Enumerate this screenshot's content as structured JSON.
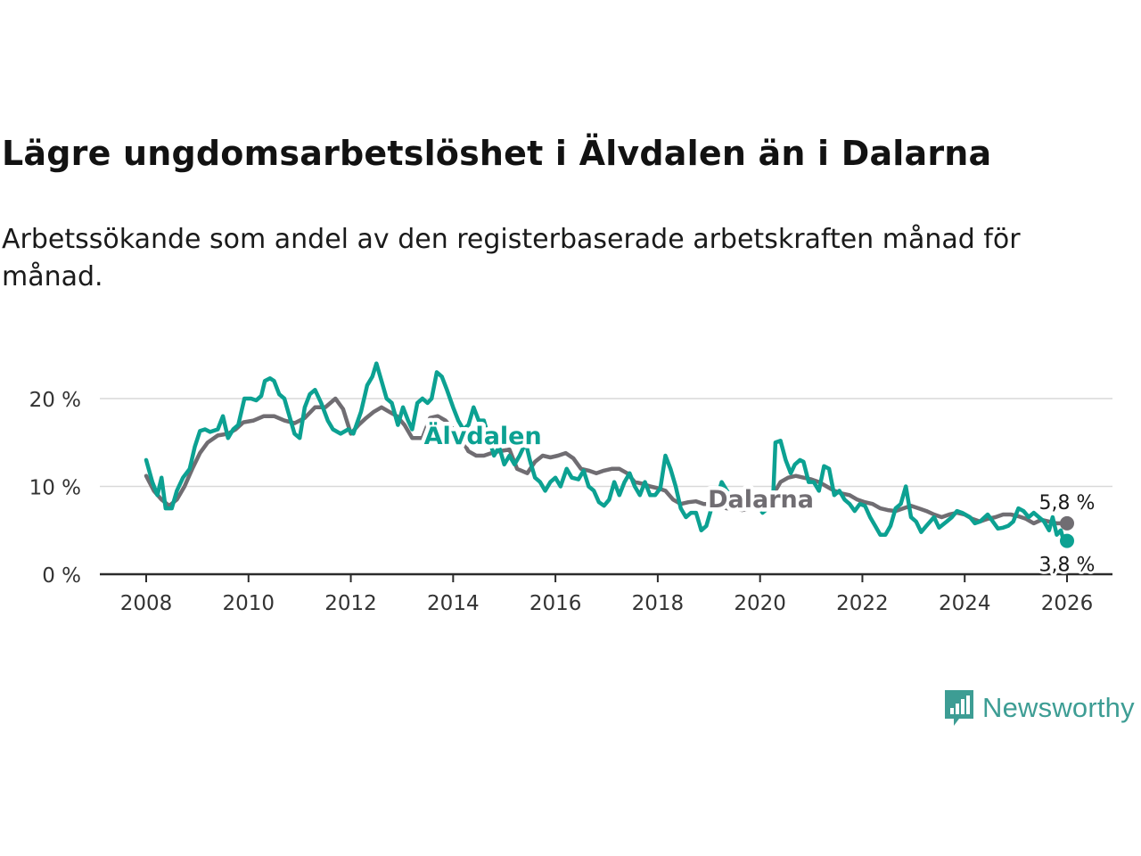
{
  "title": "Lägre ungdomsarbetslöshet i Älvdalen än i Dalarna",
  "subtitle": "Arbetssökande som andel av den registerbaserade arbetskraften månad för månad.",
  "brand": {
    "name": "Newsworthy",
    "color": "#3d9d94"
  },
  "chart_data": {
    "type": "line",
    "title": "Lägre ungdomsarbetslöshet i Älvdalen än i Dalarna",
    "xlabel": "",
    "ylabel": "",
    "xlim": [
      2007.9,
      2026.4
    ],
    "ylim": [
      0,
      22
    ],
    "x_ticks": [
      2008,
      2010,
      2012,
      2014,
      2016,
      2018,
      2020,
      2022,
      2024,
      2026
    ],
    "x_tick_labels": [
      "2008",
      "2010",
      "2012",
      "2014",
      "2016",
      "2018",
      "2020",
      "2022",
      "2024",
      "2026"
    ],
    "y_ticks": [
      0,
      10,
      20
    ],
    "y_tick_labels": [
      "0 %",
      "10 %",
      "20 %"
    ],
    "grid": true,
    "series": [
      {
        "name": "Dalarna",
        "color": "#706d72",
        "end_label": "5,8 %",
        "points": [
          [
            2008.0,
            11.2
          ],
          [
            2008.15,
            9.5
          ],
          [
            2008.3,
            8.5
          ],
          [
            2008.45,
            7.8
          ],
          [
            2008.6,
            8.5
          ],
          [
            2008.75,
            10.0
          ],
          [
            2008.9,
            12.0
          ],
          [
            2009.05,
            13.8
          ],
          [
            2009.2,
            15.0
          ],
          [
            2009.4,
            15.8
          ],
          [
            2009.6,
            16.0
          ],
          [
            2009.75,
            16.5
          ],
          [
            2009.9,
            17.3
          ],
          [
            2010.1,
            17.5
          ],
          [
            2010.3,
            18.0
          ],
          [
            2010.5,
            18.0
          ],
          [
            2010.7,
            17.5
          ],
          [
            2010.9,
            17.2
          ],
          [
            2011.1,
            17.8
          ],
          [
            2011.3,
            19.0
          ],
          [
            2011.5,
            19.0
          ],
          [
            2011.7,
            20.0
          ],
          [
            2011.85,
            18.8
          ],
          [
            2012.0,
            16.0
          ],
          [
            2012.15,
            17.0
          ],
          [
            2012.3,
            17.8
          ],
          [
            2012.45,
            18.5
          ],
          [
            2012.6,
            19.0
          ],
          [
            2012.75,
            18.5
          ],
          [
            2012.9,
            18.0
          ],
          [
            2013.05,
            17.0
          ],
          [
            2013.2,
            15.5
          ],
          [
            2013.4,
            15.5
          ],
          [
            2013.55,
            17.8
          ],
          [
            2013.7,
            18.0
          ],
          [
            2013.85,
            17.5
          ],
          [
            2014.0,
            16.5
          ],
          [
            2014.15,
            15.5
          ],
          [
            2014.3,
            14.0
          ],
          [
            2014.45,
            13.5
          ],
          [
            2014.6,
            13.5
          ],
          [
            2014.75,
            13.8
          ],
          [
            2014.9,
            14.0
          ],
          [
            2015.1,
            14.2
          ],
          [
            2015.25,
            12.0
          ],
          [
            2015.45,
            11.5
          ],
          [
            2015.6,
            12.8
          ],
          [
            2015.75,
            13.5
          ],
          [
            2015.9,
            13.3
          ],
          [
            2016.05,
            13.5
          ],
          [
            2016.2,
            13.8
          ],
          [
            2016.35,
            13.2
          ],
          [
            2016.5,
            12.0
          ],
          [
            2016.65,
            11.8
          ],
          [
            2016.8,
            11.5
          ],
          [
            2016.95,
            11.8
          ],
          [
            2017.1,
            12.0
          ],
          [
            2017.25,
            12.0
          ],
          [
            2017.4,
            11.5
          ],
          [
            2017.55,
            10.5
          ],
          [
            2017.7,
            10.3
          ],
          [
            2017.85,
            10.0
          ],
          [
            2018.0,
            9.8
          ],
          [
            2018.15,
            9.5
          ],
          [
            2018.3,
            8.5
          ],
          [
            2018.45,
            8.0
          ],
          [
            2018.6,
            8.2
          ],
          [
            2018.75,
            8.3
          ],
          [
            2018.9,
            8.0
          ],
          [
            2019.05,
            8.0
          ],
          [
            2019.2,
            7.8
          ],
          [
            2019.35,
            7.5
          ],
          [
            2019.5,
            7.5
          ],
          [
            2019.65,
            7.3
          ],
          [
            2019.8,
            7.5
          ],
          [
            2019.95,
            7.8
          ],
          [
            2020.1,
            8.5
          ],
          [
            2020.25,
            9.0
          ],
          [
            2020.4,
            10.5
          ],
          [
            2020.55,
            11.0
          ],
          [
            2020.7,
            11.2
          ],
          [
            2020.85,
            11.0
          ],
          [
            2021.0,
            10.8
          ],
          [
            2021.15,
            10.5
          ],
          [
            2021.3,
            10.0
          ],
          [
            2021.45,
            9.5
          ],
          [
            2021.6,
            9.2
          ],
          [
            2021.75,
            9.0
          ],
          [
            2021.9,
            8.5
          ],
          [
            2022.05,
            8.2
          ],
          [
            2022.2,
            8.0
          ],
          [
            2022.35,
            7.5
          ],
          [
            2022.5,
            7.3
          ],
          [
            2022.65,
            7.2
          ],
          [
            2022.8,
            7.5
          ],
          [
            2022.95,
            7.8
          ],
          [
            2023.1,
            7.5
          ],
          [
            2023.25,
            7.2
          ],
          [
            2023.4,
            6.8
          ],
          [
            2023.55,
            6.5
          ],
          [
            2023.7,
            6.8
          ],
          [
            2023.85,
            7.0
          ],
          [
            2024.0,
            6.8
          ],
          [
            2024.15,
            6.3
          ],
          [
            2024.3,
            6.0
          ],
          [
            2024.45,
            6.3
          ],
          [
            2024.6,
            6.5
          ],
          [
            2024.75,
            6.8
          ],
          [
            2024.9,
            6.8
          ],
          [
            2025.05,
            6.6
          ],
          [
            2025.2,
            6.3
          ],
          [
            2025.35,
            5.8
          ],
          [
            2025.5,
            6.2
          ],
          [
            2025.65,
            6.0
          ],
          [
            2025.8,
            5.8
          ],
          [
            2026.0,
            5.8
          ]
        ]
      },
      {
        "name": "Älvdalen",
        "color": "#0ca192",
        "end_label": "3,8 %",
        "points": [
          [
            2008.0,
            13.0
          ],
          [
            2008.12,
            10.5
          ],
          [
            2008.22,
            9.0
          ],
          [
            2008.3,
            11.0
          ],
          [
            2008.38,
            7.5
          ],
          [
            2008.5,
            7.5
          ],
          [
            2008.6,
            9.5
          ],
          [
            2008.72,
            11.0
          ],
          [
            2008.85,
            12.0
          ],
          [
            2008.95,
            14.5
          ],
          [
            2009.05,
            16.3
          ],
          [
            2009.15,
            16.5
          ],
          [
            2009.25,
            16.2
          ],
          [
            2009.4,
            16.5
          ],
          [
            2009.5,
            18.0
          ],
          [
            2009.6,
            15.5
          ],
          [
            2009.7,
            16.5
          ],
          [
            2009.8,
            17.0
          ],
          [
            2009.92,
            20.0
          ],
          [
            2010.05,
            20.0
          ],
          [
            2010.15,
            19.8
          ],
          [
            2010.25,
            20.3
          ],
          [
            2010.32,
            22.0
          ],
          [
            2010.42,
            22.3
          ],
          [
            2010.5,
            22.0
          ],
          [
            2010.6,
            20.5
          ],
          [
            2010.7,
            20.0
          ],
          [
            2010.8,
            18.0
          ],
          [
            2010.9,
            16.0
          ],
          [
            2011.0,
            15.5
          ],
          [
            2011.1,
            19.0
          ],
          [
            2011.2,
            20.5
          ],
          [
            2011.3,
            21.0
          ],
          [
            2011.42,
            19.5
          ],
          [
            2011.55,
            17.5
          ],
          [
            2011.65,
            16.5
          ],
          [
            2011.8,
            16.0
          ],
          [
            2011.95,
            16.5
          ],
          [
            2012.05,
            16.0
          ],
          [
            2012.2,
            18.5
          ],
          [
            2012.32,
            21.5
          ],
          [
            2012.42,
            22.5
          ],
          [
            2012.5,
            24.0
          ],
          [
            2012.6,
            22.0
          ],
          [
            2012.7,
            20.0
          ],
          [
            2012.8,
            19.5
          ],
          [
            2012.92,
            17.0
          ],
          [
            2013.02,
            19.0
          ],
          [
            2013.12,
            17.5
          ],
          [
            2013.2,
            16.5
          ],
          [
            2013.3,
            19.5
          ],
          [
            2013.4,
            20.0
          ],
          [
            2013.5,
            19.5
          ],
          [
            2013.58,
            20.0
          ],
          [
            2013.68,
            23.0
          ],
          [
            2013.78,
            22.5
          ],
          [
            2013.88,
            21.0
          ],
          [
            2014.0,
            19.0
          ],
          [
            2014.1,
            17.5
          ],
          [
            2014.2,
            16.5
          ],
          [
            2014.3,
            17.0
          ],
          [
            2014.4,
            19.0
          ],
          [
            2014.5,
            17.5
          ],
          [
            2014.6,
            17.5
          ],
          [
            2014.7,
            15.5
          ],
          [
            2014.8,
            13.5
          ],
          [
            2014.9,
            14.5
          ],
          [
            2015.0,
            12.5
          ],
          [
            2015.1,
            13.5
          ],
          [
            2015.2,
            12.5
          ],
          [
            2015.3,
            13.5
          ],
          [
            2015.42,
            15.0
          ],
          [
            2015.5,
            13.0
          ],
          [
            2015.6,
            11.0
          ],
          [
            2015.7,
            10.5
          ],
          [
            2015.8,
            9.5
          ],
          [
            2015.9,
            10.5
          ],
          [
            2016.0,
            11.0
          ],
          [
            2016.1,
            10.0
          ],
          [
            2016.22,
            12.0
          ],
          [
            2016.32,
            11.0
          ],
          [
            2016.45,
            10.8
          ],
          [
            2016.55,
            11.8
          ],
          [
            2016.65,
            10.0
          ],
          [
            2016.75,
            9.5
          ],
          [
            2016.85,
            8.2
          ],
          [
            2016.95,
            7.8
          ],
          [
            2017.05,
            8.5
          ],
          [
            2017.15,
            10.5
          ],
          [
            2017.25,
            9.0
          ],
          [
            2017.35,
            10.5
          ],
          [
            2017.45,
            11.5
          ],
          [
            2017.55,
            10.0
          ],
          [
            2017.65,
            9.0
          ],
          [
            2017.75,
            10.5
          ],
          [
            2017.85,
            9.0
          ],
          [
            2017.95,
            9.0
          ],
          [
            2018.05,
            9.8
          ],
          [
            2018.15,
            13.5
          ],
          [
            2018.25,
            12.0
          ],
          [
            2018.35,
            10.0
          ],
          [
            2018.45,
            7.5
          ],
          [
            2018.55,
            6.5
          ],
          [
            2018.65,
            7.0
          ],
          [
            2018.75,
            7.0
          ],
          [
            2018.85,
            5.0
          ],
          [
            2018.95,
            5.5
          ],
          [
            2019.05,
            7.5
          ],
          [
            2019.15,
            8.5
          ],
          [
            2019.25,
            10.5
          ],
          [
            2019.35,
            9.5
          ],
          [
            2019.5,
            8.5
          ],
          [
            2019.65,
            7.8
          ],
          [
            2019.8,
            7.5
          ],
          [
            2019.95,
            8.0
          ],
          [
            2020.05,
            7.0
          ],
          [
            2020.15,
            7.5
          ],
          [
            2020.25,
            8.0
          ],
          [
            2020.3,
            15.0
          ],
          [
            2020.4,
            15.2
          ],
          [
            2020.5,
            13.0
          ],
          [
            2020.6,
            11.5
          ],
          [
            2020.68,
            12.5
          ],
          [
            2020.78,
            13.0
          ],
          [
            2020.85,
            12.8
          ],
          [
            2020.95,
            10.5
          ],
          [
            2021.05,
            10.5
          ],
          [
            2021.15,
            9.5
          ],
          [
            2021.25,
            12.3
          ],
          [
            2021.35,
            12.0
          ],
          [
            2021.45,
            9.0
          ],
          [
            2021.55,
            9.5
          ],
          [
            2021.65,
            8.5
          ],
          [
            2021.75,
            8.0
          ],
          [
            2021.85,
            7.2
          ],
          [
            2021.95,
            8.0
          ],
          [
            2022.05,
            7.8
          ],
          [
            2022.15,
            6.5
          ],
          [
            2022.25,
            5.5
          ],
          [
            2022.35,
            4.5
          ],
          [
            2022.45,
            4.5
          ],
          [
            2022.55,
            5.5
          ],
          [
            2022.65,
            7.5
          ],
          [
            2022.75,
            8.0
          ],
          [
            2022.85,
            10.0
          ],
          [
            2022.95,
            6.5
          ],
          [
            2023.05,
            6.0
          ],
          [
            2023.15,
            4.8
          ],
          [
            2023.25,
            5.5
          ],
          [
            2023.4,
            6.5
          ],
          [
            2023.5,
            5.3
          ],
          [
            2023.65,
            6.0
          ],
          [
            2023.75,
            6.5
          ],
          [
            2023.85,
            7.2
          ],
          [
            2023.95,
            7.0
          ],
          [
            2024.1,
            6.5
          ],
          [
            2024.2,
            5.8
          ],
          [
            2024.3,
            6.0
          ],
          [
            2024.45,
            6.8
          ],
          [
            2024.55,
            6.0
          ],
          [
            2024.65,
            5.2
          ],
          [
            2024.75,
            5.3
          ],
          [
            2024.85,
            5.5
          ],
          [
            2024.95,
            6.0
          ],
          [
            2025.05,
            7.5
          ],
          [
            2025.15,
            7.2
          ],
          [
            2025.25,
            6.5
          ],
          [
            2025.35,
            7.0
          ],
          [
            2025.45,
            6.5
          ],
          [
            2025.55,
            6.0
          ],
          [
            2025.65,
            5.0
          ],
          [
            2025.72,
            6.5
          ],
          [
            2025.8,
            4.5
          ],
          [
            2025.88,
            5.0
          ],
          [
            2025.95,
            3.5
          ],
          [
            2026.0,
            3.8
          ]
        ]
      }
    ]
  }
}
